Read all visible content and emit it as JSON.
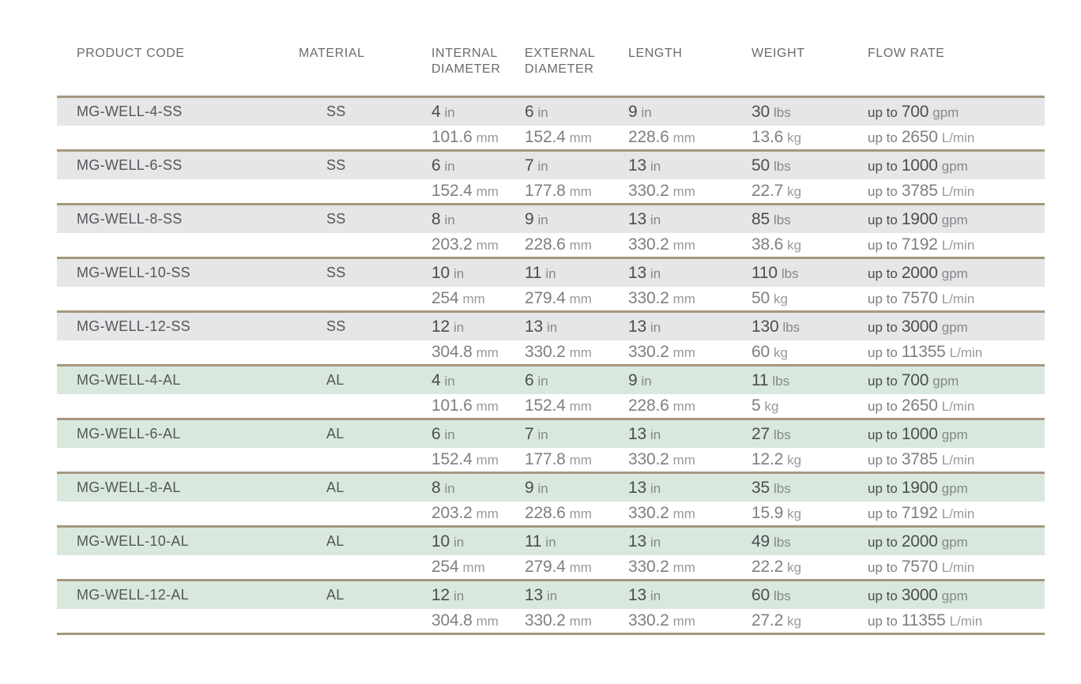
{
  "table": {
    "headers": {
      "product_code": "PRODUCT CODE",
      "material": "MATERIAL",
      "internal_diameter": "INTERNAL DIAMETER",
      "external_diameter": "EXTERNAL DIAMETER",
      "length": "LENGTH",
      "weight": "WEIGHT",
      "flow_rate": "FLOW RATE"
    },
    "colors": {
      "ss_row_bg": "#e5e6e7",
      "al_row_bg": "#d9e8dd",
      "separator_tan": "#a5977f",
      "value_dark": "#4c4d4f",
      "value_metric": "#7d7f82"
    },
    "groups": [
      {
        "product_code": "MG-WELL-4-SS",
        "material": "SS",
        "variant": "ss",
        "imperial": {
          "internal": {
            "value": "4",
            "unit": "in"
          },
          "external": {
            "value": "6",
            "unit": "in"
          },
          "length": {
            "value": "9",
            "unit": "in"
          },
          "weight": {
            "value": "30",
            "unit": "lbs"
          },
          "flow": {
            "prefix": "up to",
            "value": "700",
            "unit": "gpm"
          }
        },
        "metric": {
          "internal": {
            "value": "101.6",
            "unit": "mm"
          },
          "external": {
            "value": "152.4",
            "unit": "mm"
          },
          "length": {
            "value": "228.6",
            "unit": "mm"
          },
          "weight": {
            "value": "13.6",
            "unit": "kg"
          },
          "flow": {
            "prefix": "up to",
            "value": "2650",
            "unit": "L/min"
          }
        }
      },
      {
        "product_code": "MG-WELL-6-SS",
        "material": "SS",
        "variant": "ss",
        "imperial": {
          "internal": {
            "value": "6",
            "unit": "in"
          },
          "external": {
            "value": "7",
            "unit": "in"
          },
          "length": {
            "value": "13",
            "unit": "in"
          },
          "weight": {
            "value": "50",
            "unit": "lbs"
          },
          "flow": {
            "prefix": "up to",
            "value": "1000",
            "unit": "gpm"
          }
        },
        "metric": {
          "internal": {
            "value": "152.4",
            "unit": "mm"
          },
          "external": {
            "value": "177.8",
            "unit": "mm"
          },
          "length": {
            "value": "330.2",
            "unit": "mm"
          },
          "weight": {
            "value": "22.7",
            "unit": "kg"
          },
          "flow": {
            "prefix": "up to",
            "value": "3785",
            "unit": "L/min"
          }
        }
      },
      {
        "product_code": "MG-WELL-8-SS",
        "material": "SS",
        "variant": "ss",
        "imperial": {
          "internal": {
            "value": "8",
            "unit": "in"
          },
          "external": {
            "value": "9",
            "unit": "in"
          },
          "length": {
            "value": "13",
            "unit": "in"
          },
          "weight": {
            "value": "85",
            "unit": "lbs"
          },
          "flow": {
            "prefix": "up to",
            "value": "1900",
            "unit": "gpm"
          }
        },
        "metric": {
          "internal": {
            "value": "203.2",
            "unit": "mm"
          },
          "external": {
            "value": "228.6",
            "unit": "mm"
          },
          "length": {
            "value": "330.2",
            "unit": "mm"
          },
          "weight": {
            "value": "38.6",
            "unit": "kg"
          },
          "flow": {
            "prefix": "up to",
            "value": "7192",
            "unit": "L/min"
          }
        }
      },
      {
        "product_code": "MG-WELL-10-SS",
        "material": "SS",
        "variant": "ss",
        "imperial": {
          "internal": {
            "value": "10",
            "unit": "in"
          },
          "external": {
            "value": "11",
            "unit": "in"
          },
          "length": {
            "value": "13",
            "unit": "in"
          },
          "weight": {
            "value": "110",
            "unit": "lbs"
          },
          "flow": {
            "prefix": "up to",
            "value": "2000",
            "unit": "gpm"
          }
        },
        "metric": {
          "internal": {
            "value": "254",
            "unit": "mm"
          },
          "external": {
            "value": "279.4",
            "unit": "mm"
          },
          "length": {
            "value": "330.2",
            "unit": "mm"
          },
          "weight": {
            "value": "50",
            "unit": "kg"
          },
          "flow": {
            "prefix": "up to",
            "value": "7570",
            "unit": "L/min"
          }
        }
      },
      {
        "product_code": "MG-WELL-12-SS",
        "material": "SS",
        "variant": "ss",
        "imperial": {
          "internal": {
            "value": "12",
            "unit": "in"
          },
          "external": {
            "value": "13",
            "unit": "in"
          },
          "length": {
            "value": "13",
            "unit": "in"
          },
          "weight": {
            "value": "130",
            "unit": "lbs"
          },
          "flow": {
            "prefix": "up to",
            "value": "3000",
            "unit": "gpm"
          }
        },
        "metric": {
          "internal": {
            "value": "304.8",
            "unit": "mm"
          },
          "external": {
            "value": "330.2",
            "unit": "mm"
          },
          "length": {
            "value": "330.2",
            "unit": "mm"
          },
          "weight": {
            "value": "60",
            "unit": "kg"
          },
          "flow": {
            "prefix": "up to",
            "value": "11355",
            "unit": "L/min"
          }
        }
      },
      {
        "product_code": "MG-WELL-4-AL",
        "material": "AL",
        "variant": "al",
        "imperial": {
          "internal": {
            "value": "4",
            "unit": "in"
          },
          "external": {
            "value": "6",
            "unit": "in"
          },
          "length": {
            "value": "9",
            "unit": "in"
          },
          "weight": {
            "value": "11",
            "unit": "lbs"
          },
          "flow": {
            "prefix": "up to",
            "value": "700",
            "unit": "gpm"
          }
        },
        "metric": {
          "internal": {
            "value": "101.6",
            "unit": "mm"
          },
          "external": {
            "value": "152.4",
            "unit": "mm"
          },
          "length": {
            "value": "228.6",
            "unit": "mm"
          },
          "weight": {
            "value": "5",
            "unit": "kg"
          },
          "flow": {
            "prefix": "up to",
            "value": "2650",
            "unit": "L/min"
          }
        }
      },
      {
        "product_code": "MG-WELL-6-AL",
        "material": "AL",
        "variant": "al",
        "imperial": {
          "internal": {
            "value": "6",
            "unit": "in"
          },
          "external": {
            "value": "7",
            "unit": "in"
          },
          "length": {
            "value": "13",
            "unit": "in"
          },
          "weight": {
            "value": "27",
            "unit": "lbs"
          },
          "flow": {
            "prefix": "up to",
            "value": "1000",
            "unit": "gpm"
          }
        },
        "metric": {
          "internal": {
            "value": "152.4",
            "unit": "mm"
          },
          "external": {
            "value": "177.8",
            "unit": "mm"
          },
          "length": {
            "value": "330.2",
            "unit": "mm"
          },
          "weight": {
            "value": "12.2",
            "unit": "kg"
          },
          "flow": {
            "prefix": "up to",
            "value": "3785",
            "unit": "L/min"
          }
        }
      },
      {
        "product_code": "MG-WELL-8-AL",
        "material": "AL",
        "variant": "al",
        "imperial": {
          "internal": {
            "value": "8",
            "unit": "in"
          },
          "external": {
            "value": "9",
            "unit": "in"
          },
          "length": {
            "value": "13",
            "unit": "in"
          },
          "weight": {
            "value": "35",
            "unit": "lbs"
          },
          "flow": {
            "prefix": "up to",
            "value": "1900",
            "unit": "gpm"
          }
        },
        "metric": {
          "internal": {
            "value": "203.2",
            "unit": "mm"
          },
          "external": {
            "value": "228.6",
            "unit": "mm"
          },
          "length": {
            "value": "330.2",
            "unit": "mm"
          },
          "weight": {
            "value": "15.9",
            "unit": "kg"
          },
          "flow": {
            "prefix": "up to",
            "value": "7192",
            "unit": "L/min"
          }
        }
      },
      {
        "product_code": "MG-WELL-10-AL",
        "material": "AL",
        "variant": "al",
        "imperial": {
          "internal": {
            "value": "10",
            "unit": "in"
          },
          "external": {
            "value": "11",
            "unit": "in"
          },
          "length": {
            "value": "13",
            "unit": "in"
          },
          "weight": {
            "value": "49",
            "unit": "lbs"
          },
          "flow": {
            "prefix": "up to",
            "value": "2000",
            "unit": "gpm"
          }
        },
        "metric": {
          "internal": {
            "value": "254",
            "unit": "mm"
          },
          "external": {
            "value": "279.4",
            "unit": "mm"
          },
          "length": {
            "value": "330.2",
            "unit": "mm"
          },
          "weight": {
            "value": "22.2",
            "unit": "kg"
          },
          "flow": {
            "prefix": "up to",
            "value": "7570",
            "unit": "L/min"
          }
        }
      },
      {
        "product_code": "MG-WELL-12-AL",
        "material": "AL",
        "variant": "al",
        "imperial": {
          "internal": {
            "value": "12",
            "unit": "in"
          },
          "external": {
            "value": "13",
            "unit": "in"
          },
          "length": {
            "value": "13",
            "unit": "in"
          },
          "weight": {
            "value": "60",
            "unit": "lbs"
          },
          "flow": {
            "prefix": "up to",
            "value": "3000",
            "unit": "gpm"
          }
        },
        "metric": {
          "internal": {
            "value": "304.8",
            "unit": "mm"
          },
          "external": {
            "value": "330.2",
            "unit": "mm"
          },
          "length": {
            "value": "330.2",
            "unit": "mm"
          },
          "weight": {
            "value": "27.2",
            "unit": "kg"
          },
          "flow": {
            "prefix": "up to",
            "value": "11355",
            "unit": "L/min"
          }
        }
      }
    ]
  }
}
